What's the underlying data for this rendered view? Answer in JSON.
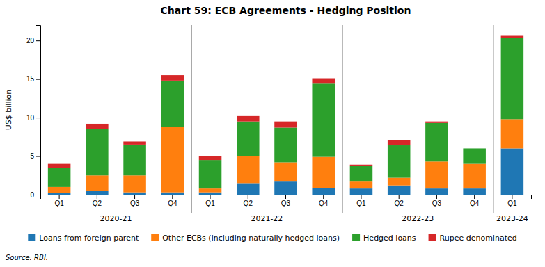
{
  "chart_data": {
    "type": "bar",
    "stacked": true,
    "title": "Chart 59: ECB Agreements - Hedging Position",
    "ylabel": "US$ billion",
    "source": "Source: RBI.",
    "categories": [
      "Q1",
      "Q2",
      "Q3",
      "Q4",
      "Q1",
      "Q2",
      "Q3",
      "Q4",
      "Q1",
      "Q2",
      "Q3",
      "Q4",
      "Q1"
    ],
    "groups": [
      "2020-21",
      "2021-22",
      "2022-23",
      "2023-24"
    ],
    "group_counts": [
      4,
      4,
      4,
      1
    ],
    "series": [
      {
        "name": "Loans from foreign parent",
        "values": [
          0.2,
          0.5,
          0.3,
          0.3,
          0.3,
          1.5,
          1.7,
          0.9,
          0.8,
          1.2,
          0.8,
          0.8,
          6.0
        ]
      },
      {
        "name": "Other ECBs (including naturally hedged loans)",
        "values": [
          0.8,
          2.0,
          2.2,
          8.5,
          0.5,
          3.5,
          2.5,
          4.0,
          0.9,
          1.0,
          3.5,
          3.2,
          3.8
        ]
      },
      {
        "name": "Hedged loans",
        "values": [
          2.5,
          6.0,
          4.0,
          6.0,
          3.7,
          4.5,
          4.5,
          9.5,
          2.0,
          4.2,
          5.0,
          2.0,
          10.5
        ]
      },
      {
        "name": "Rupee denominated",
        "values": [
          0.5,
          0.7,
          0.4,
          0.7,
          0.5,
          0.7,
          0.8,
          0.7,
          0.2,
          0.7,
          0.2,
          0.0,
          0.3
        ]
      }
    ],
    "ylim": [
      0,
      22
    ],
    "yticks": [
      0,
      5,
      10,
      15,
      20
    ],
    "grid": false,
    "legend": "bottom"
  }
}
